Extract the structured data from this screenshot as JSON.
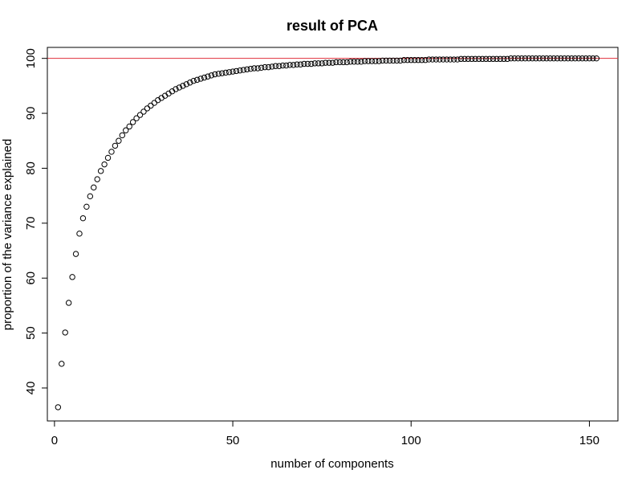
{
  "chart_data": {
    "type": "scatter",
    "title": "result of PCA",
    "xlabel": "number of components",
    "ylabel": "proportion of the variance explained",
    "xlim": [
      -2,
      158
    ],
    "ylim": [
      34,
      102
    ],
    "x_ticks": [
      0,
      50,
      100,
      150
    ],
    "y_ticks": [
      40,
      50,
      60,
      70,
      80,
      90,
      100
    ],
    "x_tick_labels": [
      "0",
      "50",
      "100",
      "150"
    ],
    "y_tick_labels": [
      "40",
      "50",
      "60",
      "70",
      "80",
      "90",
      "100"
    ],
    "reference_line": {
      "y": 100,
      "color": "#e0313b"
    },
    "marker": "open-circle",
    "series": [
      {
        "x": [
          1,
          2,
          3,
          4,
          5,
          6,
          7,
          8,
          9,
          10,
          11,
          12,
          13,
          14,
          15,
          16,
          17,
          18,
          19,
          20,
          21,
          22,
          23,
          24,
          25,
          26,
          27,
          28,
          29,
          30,
          31,
          32,
          33,
          34,
          35,
          36,
          37,
          38,
          39,
          40,
          41,
          42,
          43,
          44,
          45,
          46,
          47,
          48,
          49,
          50,
          51,
          52,
          53,
          54,
          55,
          56,
          57,
          58,
          59,
          60,
          61,
          62,
          63,
          64,
          65,
          66,
          67,
          68,
          69,
          70,
          71,
          72,
          73,
          74,
          75,
          76,
          77,
          78,
          79,
          80,
          81,
          82,
          83,
          84,
          85,
          86,
          87,
          88,
          89,
          90,
          91,
          92,
          93,
          94,
          95,
          96,
          97,
          98,
          99,
          100,
          101,
          102,
          103,
          104,
          105,
          106,
          107,
          108,
          109,
          110,
          111,
          112,
          113,
          114,
          115,
          116,
          117,
          118,
          119,
          120,
          121,
          122,
          123,
          124,
          125,
          126,
          127,
          128,
          129,
          130,
          131,
          132,
          133,
          134,
          135,
          136,
          137,
          138,
          139,
          140,
          141,
          142,
          143,
          144,
          145,
          146,
          147,
          148,
          149,
          150,
          151,
          152
        ],
        "y": [
          36.5,
          44.4,
          50.1,
          55.5,
          60.2,
          64.4,
          68.1,
          70.9,
          73.0,
          74.9,
          76.5,
          78.0,
          79.5,
          80.7,
          81.9,
          83.0,
          84.1,
          85.0,
          86.0,
          86.9,
          87.6,
          88.4,
          89.1,
          89.7,
          90.3,
          90.9,
          91.4,
          91.9,
          92.4,
          92.8,
          93.2,
          93.6,
          94.0,
          94.4,
          94.7,
          95.0,
          95.3,
          95.6,
          95.9,
          96.1,
          96.3,
          96.5,
          96.7,
          96.9,
          97.1,
          97.2,
          97.3,
          97.4,
          97.5,
          97.6,
          97.7,
          97.8,
          97.9,
          98.0,
          98.1,
          98.2,
          98.2,
          98.3,
          98.4,
          98.4,
          98.5,
          98.6,
          98.6,
          98.7,
          98.7,
          98.8,
          98.8,
          98.9,
          98.9,
          99.0,
          99.0,
          99.0,
          99.1,
          99.1,
          99.1,
          99.2,
          99.2,
          99.2,
          99.3,
          99.3,
          99.3,
          99.3,
          99.4,
          99.4,
          99.4,
          99.4,
          99.5,
          99.5,
          99.5,
          99.5,
          99.5,
          99.6,
          99.6,
          99.6,
          99.6,
          99.6,
          99.6,
          99.7,
          99.7,
          99.7,
          99.7,
          99.7,
          99.7,
          99.7,
          99.8,
          99.8,
          99.8,
          99.8,
          99.8,
          99.8,
          99.8,
          99.8,
          99.8,
          99.9,
          99.9,
          99.9,
          99.9,
          99.9,
          99.9,
          99.9,
          99.9,
          99.9,
          99.9,
          99.9,
          99.9,
          99.9,
          99.9,
          100.0,
          100.0,
          100.0,
          100.0,
          100.0,
          100.0,
          100.0,
          100.0,
          100.0,
          100.0,
          100.0,
          100.0,
          100.0,
          100.0,
          100.0,
          100.0,
          100.0,
          100.0,
          100.0,
          100.0,
          100.0,
          100.0,
          100.0,
          100.0,
          100.0
        ]
      }
    ],
    "grid": false,
    "legend": "none"
  }
}
